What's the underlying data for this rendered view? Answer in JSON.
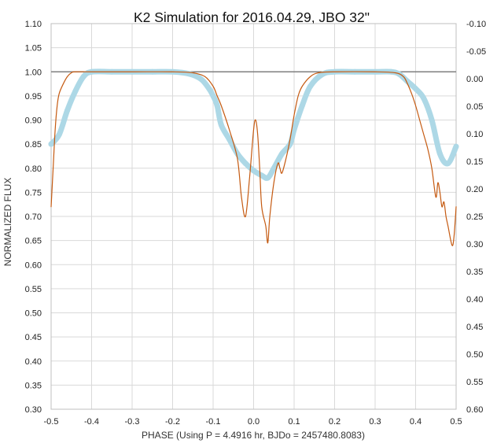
{
  "chart_data": {
    "type": "line",
    "title": "K2 Simulation for 2016.04.29, JBO 32\"",
    "xlabel": "PHASE (Using P = 4.4916 hr, BJDo = 2457480.8083)",
    "ylabel": "NORMALIZED FLUX",
    "xlim": [
      -0.5,
      0.5
    ],
    "ylim": [
      0.3,
      1.1
    ],
    "y2lim": [
      0.6,
      -0.1
    ],
    "grid": true,
    "legend": "none",
    "x_ticks": [
      "-0.5",
      "-0.4",
      "-0.3",
      "-0.2",
      "-0.1",
      "0.0",
      "0.1",
      "0.2",
      "0.3",
      "0.4",
      "0.5"
    ],
    "y_ticks": [
      "0.30",
      "0.35",
      "0.40",
      "0.45",
      "0.50",
      "0.55",
      "0.60",
      "0.65",
      "0.70",
      "0.75",
      "0.80",
      "0.85",
      "0.90",
      "0.95",
      "1.00",
      "1.05",
      "1.10"
    ],
    "y2_ticks": [
      "0.60",
      "0.55",
      "0.50",
      "0.45",
      "0.40",
      "0.35",
      "0.30",
      "0.25",
      "0.20",
      "0.15",
      "0.10",
      "0.05",
      "0.00",
      "-0.05",
      "-0.10"
    ],
    "reference_line": {
      "y": 1.0,
      "color": "#7f7f7f"
    },
    "series": [
      {
        "color": "#add8e6",
        "style": "markers",
        "x": [
          -0.5,
          -0.48,
          -0.46,
          -0.44,
          -0.42,
          -0.4,
          -0.35,
          -0.3,
          -0.25,
          -0.2,
          -0.16,
          -0.13,
          -0.11,
          -0.1,
          -0.09,
          -0.08,
          -0.06,
          -0.04,
          -0.02,
          0.0,
          0.02,
          0.035,
          0.05,
          0.07,
          0.09,
          0.1,
          0.12,
          0.14,
          0.17,
          0.2,
          0.25,
          0.3,
          0.34,
          0.36,
          0.38,
          0.4,
          0.42,
          0.44,
          0.46,
          0.48,
          0.5
        ],
        "y": [
          0.85,
          0.87,
          0.92,
          0.96,
          0.99,
          1.0,
          1.0,
          1.0,
          1.0,
          1.0,
          0.996,
          0.985,
          0.965,
          0.95,
          0.93,
          0.89,
          0.86,
          0.83,
          0.81,
          0.795,
          0.785,
          0.78,
          0.8,
          0.83,
          0.85,
          0.88,
          0.93,
          0.97,
          0.995,
          1.0,
          1.0,
          1.0,
          1.0,
          0.995,
          0.98,
          0.965,
          0.945,
          0.9,
          0.83,
          0.81,
          0.845
        ]
      },
      {
        "color": "#c55a11",
        "style": "line",
        "x": [
          -0.5,
          -0.495,
          -0.49,
          -0.485,
          -0.48,
          -0.47,
          -0.46,
          -0.45,
          -0.44,
          -0.4,
          -0.3,
          -0.2,
          -0.15,
          -0.12,
          -0.1,
          -0.09,
          -0.08,
          -0.06,
          -0.04,
          -0.03,
          -0.02,
          -0.01,
          0.0,
          0.005,
          0.01,
          0.015,
          0.02,
          0.03,
          0.035,
          0.04,
          0.05,
          0.06,
          0.065,
          0.07,
          0.08,
          0.09,
          0.1,
          0.11,
          0.12,
          0.14,
          0.16,
          0.2,
          0.3,
          0.35,
          0.37,
          0.38,
          0.39,
          0.4,
          0.41,
          0.42,
          0.43,
          0.44,
          0.45,
          0.455,
          0.46,
          0.465,
          0.47,
          0.475,
          0.48,
          0.49,
          0.495,
          0.5
        ],
        "y": [
          0.72,
          0.8,
          0.88,
          0.93,
          0.955,
          0.975,
          0.99,
          0.998,
          1.0,
          1.0,
          1.0,
          1.0,
          0.998,
          0.99,
          0.97,
          0.95,
          0.93,
          0.88,
          0.82,
          0.74,
          0.7,
          0.78,
          0.88,
          0.9,
          0.87,
          0.8,
          0.72,
          0.68,
          0.645,
          0.7,
          0.77,
          0.81,
          0.8,
          0.79,
          0.82,
          0.86,
          0.91,
          0.95,
          0.97,
          0.99,
          0.998,
          1.0,
          1.0,
          0.998,
          0.99,
          0.975,
          0.955,
          0.93,
          0.9,
          0.87,
          0.84,
          0.8,
          0.74,
          0.77,
          0.75,
          0.72,
          0.73,
          0.7,
          0.68,
          0.64,
          0.66,
          0.72
        ]
      }
    ]
  }
}
